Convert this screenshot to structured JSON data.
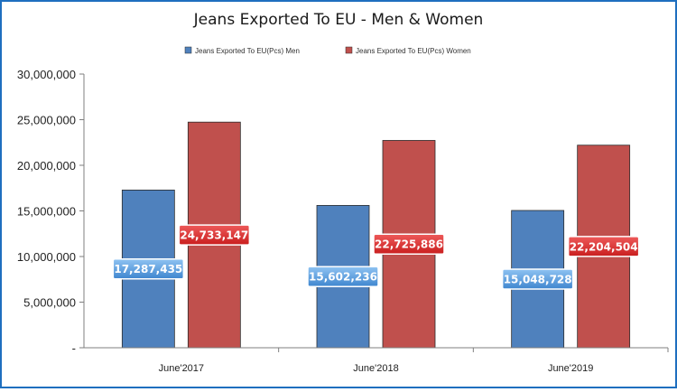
{
  "chart_data": {
    "type": "bar",
    "title": "Jeans Exported To EU - Men & Women",
    "categories": [
      "June'2017",
      "June'2018",
      "June'2019"
    ],
    "series": [
      {
        "name": "Jeans Exported  To EU(Pcs)  Men",
        "values": [
          17287435,
          15602236,
          15048728
        ],
        "labels": [
          "17,287,435",
          "15,602,236",
          "15,048,728"
        ],
        "color": "#4f81bd"
      },
      {
        "name": "Jeans Exported  To EU(Pcs)  Women",
        "values": [
          24733147,
          22725886,
          22204504
        ],
        "labels": [
          "24,733,147",
          "22,725,886",
          "22,204,504"
        ],
        "color": "#c0504d"
      }
    ],
    "ylim": [
      0,
      30000000
    ],
    "yticks": [
      0,
      5000000,
      10000000,
      15000000,
      20000000,
      25000000,
      30000000
    ],
    "ytick_labels": [
      "-",
      "5,000,000",
      "10,000,000",
      "15,000,000",
      "20,000,000",
      "25,000,000",
      "30,000,000"
    ],
    "xlabel": "",
    "ylabel": "",
    "grid": false,
    "legend_position": "top-center",
    "frame_color": "#1f6fbf"
  }
}
